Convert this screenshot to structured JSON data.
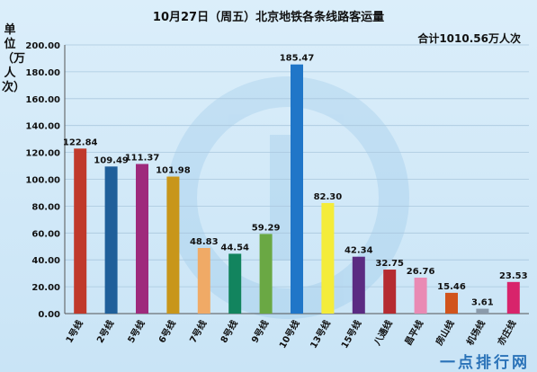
{
  "title": "10月27日（周五）北京地铁各条线路客运量",
  "total_label": "合计1010.56万人次",
  "unit_label": "单位（万人次）",
  "watermark": "一点排行网",
  "chart_data": {
    "type": "bar",
    "title": "10月27日（周五）北京地铁各条线路客运量",
    "ylabel": "单位（万人次）",
    "ylim": [
      0,
      200
    ],
    "yticks": [
      "0.00",
      "20.00",
      "40.00",
      "60.00",
      "80.00",
      "100.00",
      "120.00",
      "140.00",
      "160.00",
      "180.00",
      "200.00"
    ],
    "categories": [
      "1号线",
      "2号线",
      "5号线",
      "6号线",
      "7号线",
      "8号线",
      "9号线",
      "10号线",
      "13号线",
      "15号线",
      "八通线",
      "昌平线",
      "房山线",
      "机场线",
      "亦庄线"
    ],
    "values": [
      122.84,
      109.49,
      111.37,
      101.98,
      48.83,
      44.54,
      59.29,
      185.47,
      82.3,
      42.34,
      32.75,
      26.76,
      15.46,
      3.61,
      23.53
    ],
    "value_labels": [
      "122.84",
      "109.49",
      "111.37",
      "101.98",
      "48.83",
      "44.54",
      "59.29",
      "185.47",
      "82.30",
      "42.34",
      "32.75",
      "26.76",
      "15.46",
      "3.61",
      "23.53"
    ],
    "colors": [
      "#c0392b",
      "#1f5f9a",
      "#9e2a7c",
      "#c8961a",
      "#f0aa66",
      "#12845e",
      "#6aa844",
      "#2076c8",
      "#f4ec3a",
      "#5b2b82",
      "#b52b31",
      "#e98ab4",
      "#d1541c",
      "#8a9aaa",
      "#d8246b"
    ],
    "grid": true,
    "legend": "none"
  }
}
